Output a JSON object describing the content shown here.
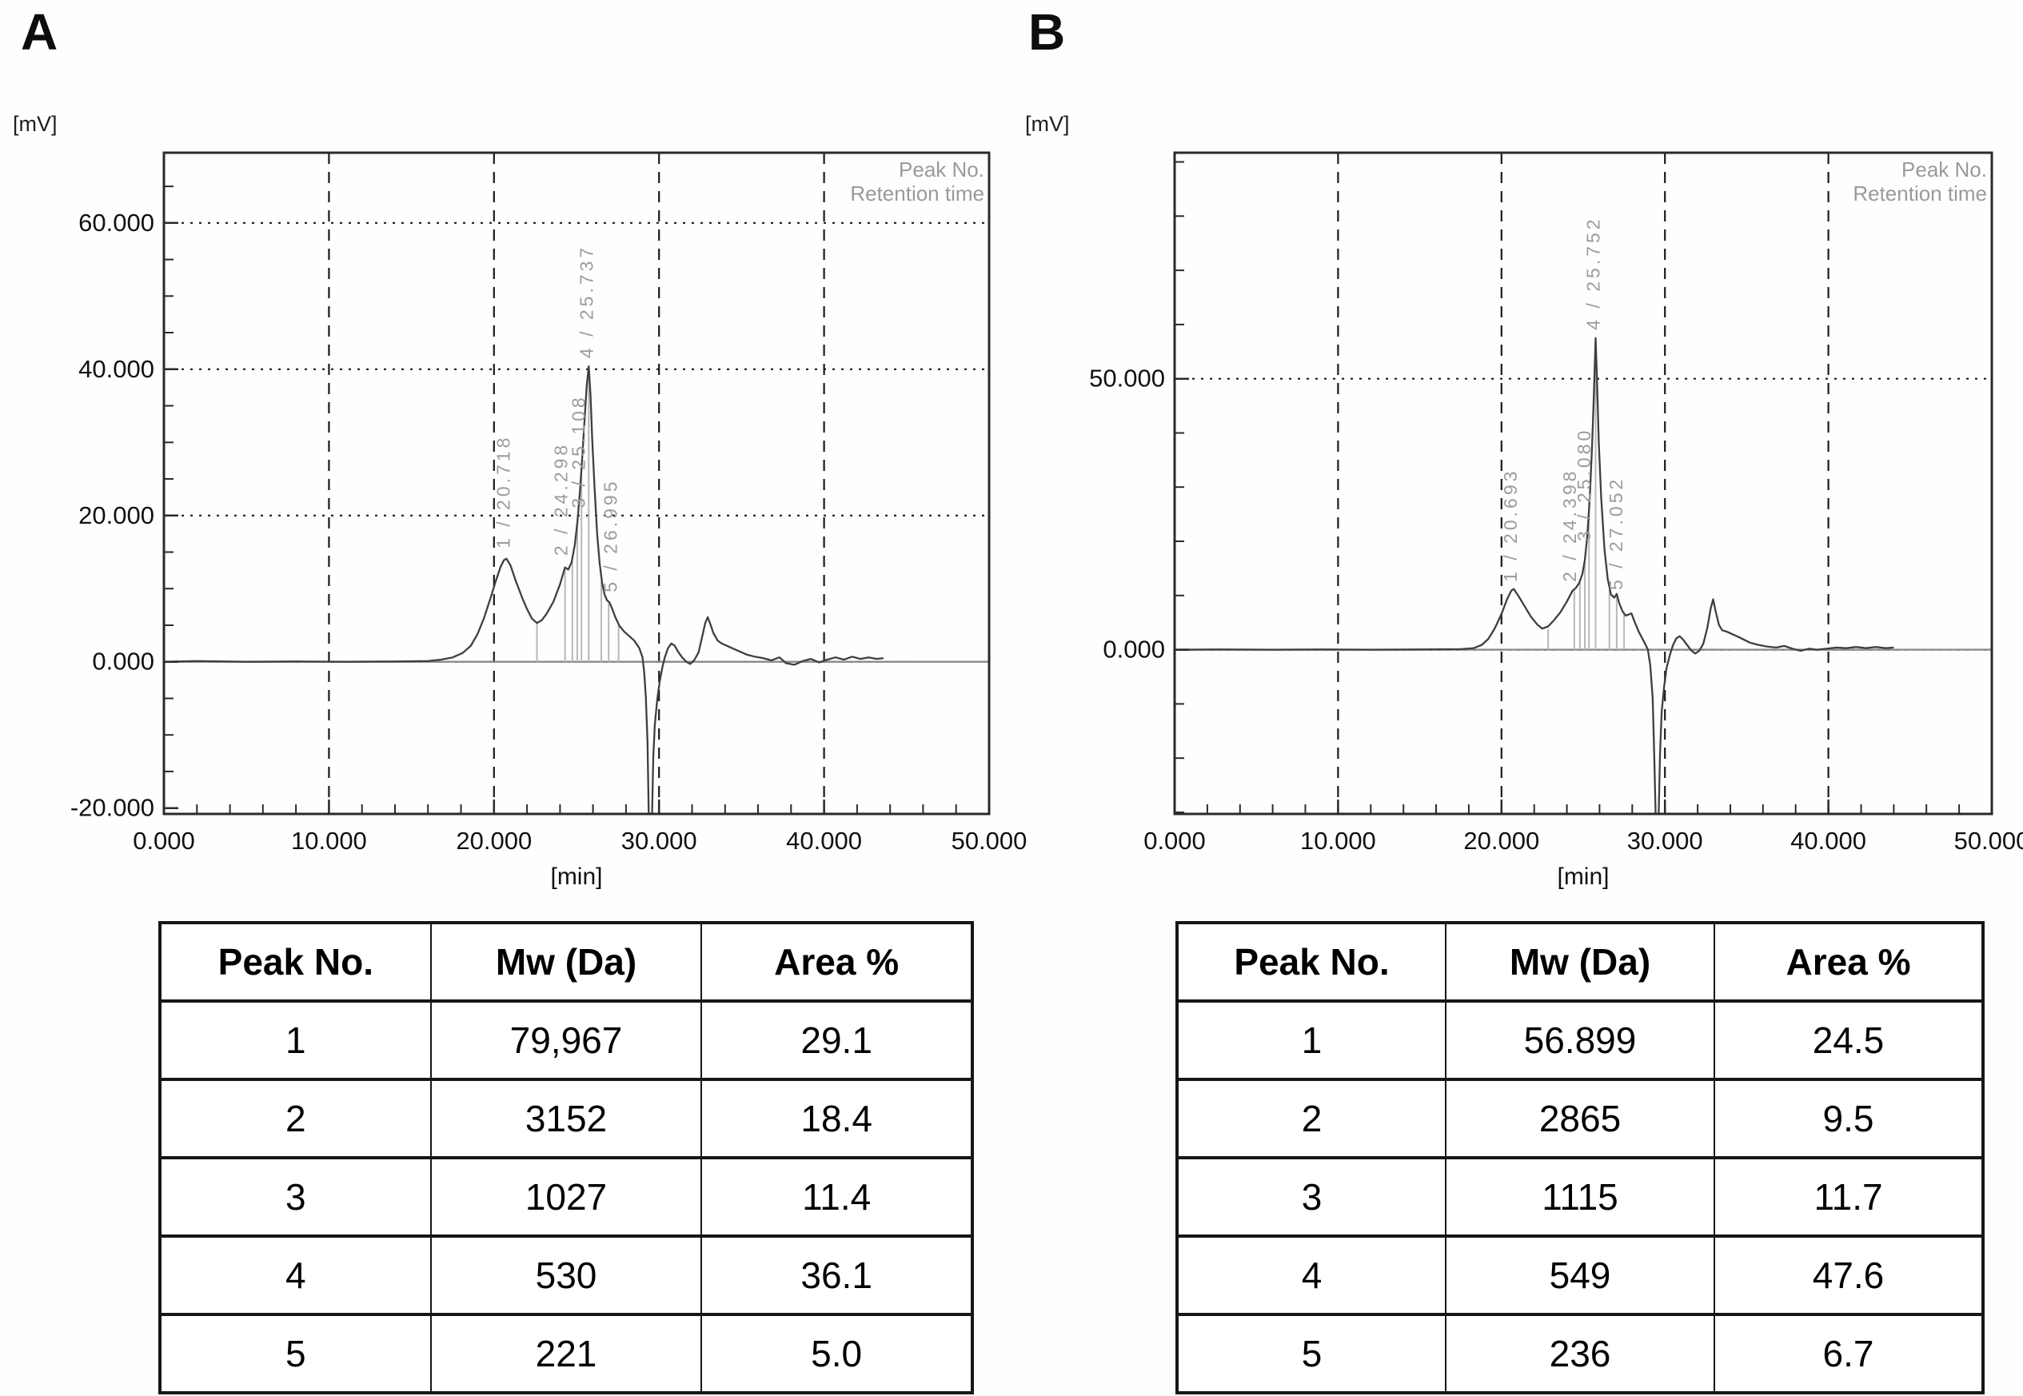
{
  "colors": {
    "curve": "#3f3f3f",
    "grid": "#1a1a1a",
    "axis": "#2a2a2a",
    "baseline": "#8a8a8a",
    "marker": "#b8b8b8",
    "annotation": "#9c9c9c",
    "legend": "#9a9a9a",
    "text": "#111111",
    "table_border": "#161616"
  },
  "chart_data": [
    {
      "type": "line",
      "id": "A",
      "panel_label": "A",
      "y_axis_unit": "[mV]",
      "x_axis_unit": "[min]",
      "legend": [
        "Peak No.",
        "Retention time"
      ],
      "x_range": [
        0,
        50
      ],
      "y_range": [
        -20.8,
        69.6
      ],
      "x_minor_step": 2,
      "y_minor_step": 5,
      "v_gridlines": [
        10,
        20,
        30,
        40
      ],
      "h_gridlines": [
        60,
        40,
        20,
        0
      ],
      "x_ticks": [
        {
          "v": 0,
          "label": "0.000"
        },
        {
          "v": 10,
          "label": "10.000"
        },
        {
          "v": 20,
          "label": "20.000"
        },
        {
          "v": 30,
          "label": "30.000"
        },
        {
          "v": 40,
          "label": "40.000"
        },
        {
          "v": 50,
          "label": "50.000"
        }
      ],
      "y_ticks": [
        {
          "v": 60,
          "label": "60.000"
        },
        {
          "v": 40,
          "label": "40.000"
        },
        {
          "v": 20,
          "label": "20.000"
        },
        {
          "v": 0,
          "label": "0.000"
        },
        {
          "v": -20,
          "label": "-20.000"
        }
      ],
      "annotations": [
        {
          "text": "1 / 20.718",
          "x": 20.95,
          "y_mv": 15.5
        },
        {
          "text": "2 / 24.298",
          "x": 24.45,
          "y_mv": 14.5
        },
        {
          "text": "3 / 25.108",
          "x": 25.5,
          "y_mv": 21
        },
        {
          "text": "4 / 25.737",
          "x": 26.0,
          "y_mv": 41.5
        },
        {
          "text": "5 / 26.995",
          "x": 27.45,
          "y_mv": 9.5
        }
      ],
      "markers": [
        {
          "x": 22.6,
          "h": 5.2
        },
        {
          "x": 24.3,
          "h": 12.8
        },
        {
          "x": 24.75,
          "h": 13.8
        },
        {
          "x": 25.05,
          "h": 19
        },
        {
          "x": 25.3,
          "h": 26
        },
        {
          "x": 25.74,
          "h": 40
        },
        {
          "x": 26.5,
          "h": 11
        },
        {
          "x": 26.95,
          "h": 8
        },
        {
          "x": 27.55,
          "h": 5
        }
      ],
      "curve": [
        [
          0,
          0
        ],
        [
          2,
          0.1
        ],
        [
          5,
          0
        ],
        [
          8,
          0.05
        ],
        [
          11,
          0
        ],
        [
          14,
          0.05
        ],
        [
          16,
          0.1
        ],
        [
          16.8,
          0.3
        ],
        [
          17.5,
          0.6
        ],
        [
          18.1,
          1.2
        ],
        [
          18.6,
          2.2
        ],
        [
          19.0,
          3.8
        ],
        [
          19.4,
          6
        ],
        [
          19.8,
          8.8
        ],
        [
          20.1,
          11
        ],
        [
          20.4,
          13
        ],
        [
          20.6,
          13.9
        ],
        [
          20.75,
          14.1
        ],
        [
          21.0,
          13.2
        ],
        [
          21.3,
          11.2
        ],
        [
          21.7,
          8.8
        ],
        [
          22.0,
          7.2
        ],
        [
          22.3,
          5.9
        ],
        [
          22.6,
          5.3
        ],
        [
          22.9,
          5.7
        ],
        [
          23.2,
          6.6
        ],
        [
          23.6,
          8.2
        ],
        [
          24.0,
          10.6
        ],
        [
          24.3,
          12.9
        ],
        [
          24.5,
          12.6
        ],
        [
          24.7,
          13.6
        ],
        [
          24.9,
          16
        ],
        [
          25.05,
          19
        ],
        [
          25.2,
          23
        ],
        [
          25.35,
          28
        ],
        [
          25.5,
          33.5
        ],
        [
          25.62,
          37.8
        ],
        [
          25.74,
          40.4
        ],
        [
          25.85,
          36.5
        ],
        [
          25.95,
          30.5
        ],
        [
          26.1,
          23.5
        ],
        [
          26.25,
          17.5
        ],
        [
          26.4,
          13.5
        ],
        [
          26.55,
          10.8
        ],
        [
          26.7,
          9.2
        ],
        [
          26.85,
          8.4
        ],
        [
          27.0,
          8.1
        ],
        [
          27.15,
          7.3
        ],
        [
          27.35,
          6.1
        ],
        [
          27.6,
          4.9
        ],
        [
          27.9,
          4.1
        ],
        [
          28.2,
          3.5
        ],
        [
          28.5,
          2.9
        ],
        [
          28.8,
          1.9
        ],
        [
          29.0,
          0.6
        ],
        [
          29.1,
          -1.4
        ],
        [
          29.2,
          -4.8
        ],
        [
          29.3,
          -11
        ],
        [
          29.4,
          -24
        ],
        [
          29.55,
          -24
        ],
        [
          29.65,
          -13
        ],
        [
          29.75,
          -8.5
        ],
        [
          29.9,
          -5
        ],
        [
          30.05,
          -2.6
        ],
        [
          30.2,
          -0.8
        ],
        [
          30.35,
          0.6
        ],
        [
          30.55,
          1.9
        ],
        [
          30.75,
          2.5
        ],
        [
          30.95,
          2.2
        ],
        [
          31.15,
          1.4
        ],
        [
          31.4,
          0.6
        ],
        [
          31.65,
          0
        ],
        [
          31.9,
          -0.3
        ],
        [
          32.15,
          0.3
        ],
        [
          32.4,
          1.3
        ],
        [
          32.6,
          3.3
        ],
        [
          32.8,
          5.3
        ],
        [
          32.95,
          6.1
        ],
        [
          33.1,
          5.2
        ],
        [
          33.3,
          3.9
        ],
        [
          33.55,
          2.9
        ],
        [
          33.8,
          2.5
        ],
        [
          34.1,
          2.2
        ],
        [
          34.5,
          1.8
        ],
        [
          34.9,
          1.4
        ],
        [
          35.3,
          1
        ],
        [
          35.8,
          0.7
        ],
        [
          36.3,
          0.5
        ],
        [
          36.8,
          0.2
        ],
        [
          37.3,
          0.6
        ],
        [
          37.7,
          -0.2
        ],
        [
          38.2,
          -0.4
        ],
        [
          38.7,
          0.1
        ],
        [
          39.2,
          0.4
        ],
        [
          39.7,
          -0.1
        ],
        [
          40.2,
          0.3
        ],
        [
          40.7,
          0.6
        ],
        [
          41.2,
          0.3
        ],
        [
          41.7,
          0.7
        ],
        [
          42.2,
          0.4
        ],
        [
          42.7,
          0.6
        ],
        [
          43.2,
          0.4
        ],
        [
          43.6,
          0.5
        ]
      ],
      "table": {
        "headers": [
          "Peak No.",
          "Mw (Da)",
          "Area %"
        ],
        "rows": [
          [
            "1",
            "79,967",
            "29.1"
          ],
          [
            "2",
            "3152",
            "18.4"
          ],
          [
            "3",
            "1027",
            "11.4"
          ],
          [
            "4",
            "530",
            "36.1"
          ],
          [
            "5",
            "221",
            "5.0"
          ]
        ]
      }
    },
    {
      "type": "line",
      "id": "B",
      "panel_label": "B",
      "y_axis_unit": "[mV]",
      "x_axis_unit": "[min]",
      "legend": [
        "Peak No.",
        "Retention time"
      ],
      "x_range": [
        0,
        50
      ],
      "y_range": [
        -30.3,
        91.7
      ],
      "x_minor_step": 2,
      "y_minor_step": 10,
      "v_gridlines": [
        10,
        20,
        30,
        40
      ],
      "h_gridlines": [
        50,
        0
      ],
      "x_ticks": [
        {
          "v": 0,
          "label": "0.000"
        },
        {
          "v": 10,
          "label": "10.000"
        },
        {
          "v": 20,
          "label": "20.000"
        },
        {
          "v": 30,
          "label": "30.000"
        },
        {
          "v": 40,
          "label": "40.000"
        },
        {
          "v": 50,
          "label": "50.000"
        }
      ],
      "y_ticks": [
        {
          "v": 50,
          "label": "50.000"
        },
        {
          "v": 0,
          "label": "0.000"
        }
      ],
      "annotations": [
        {
          "text": "1 / 20.693",
          "x": 20.95,
          "y_mv": 12.5
        },
        {
          "text": "2 / 24.398",
          "x": 24.55,
          "y_mv": 12.5
        },
        {
          "text": "3 / 25.080",
          "x": 25.45,
          "y_mv": 20
        },
        {
          "text": "4 / 25.752",
          "x": 26.0,
          "y_mv": 59
        },
        {
          "text": "5 / 27.052",
          "x": 27.4,
          "y_mv": 11
        }
      ],
      "markers": [
        {
          "x": 22.85,
          "h": 3.8
        },
        {
          "x": 24.45,
          "h": 11
        },
        {
          "x": 24.8,
          "h": 12.5
        },
        {
          "x": 25.1,
          "h": 16
        },
        {
          "x": 25.35,
          "h": 28
        },
        {
          "x": 25.76,
          "h": 57
        },
        {
          "x": 26.6,
          "h": 11
        },
        {
          "x": 27.05,
          "h": 10
        },
        {
          "x": 27.5,
          "h": 6.5
        }
      ],
      "curve": [
        [
          0,
          0
        ],
        [
          3,
          0.05
        ],
        [
          6,
          0
        ],
        [
          9,
          0.05
        ],
        [
          12,
          0
        ],
        [
          15,
          0.05
        ],
        [
          17.5,
          0.1
        ],
        [
          18.3,
          0.3
        ],
        [
          18.8,
          0.9
        ],
        [
          19.2,
          2
        ],
        [
          19.6,
          4
        ],
        [
          20.0,
          6.6
        ],
        [
          20.35,
          9.4
        ],
        [
          20.6,
          10.9
        ],
        [
          20.75,
          11.2
        ],
        [
          21.0,
          10.1
        ],
        [
          21.4,
          8.1
        ],
        [
          21.8,
          6.1
        ],
        [
          22.2,
          4.6
        ],
        [
          22.5,
          3.9
        ],
        [
          22.85,
          4.3
        ],
        [
          23.2,
          5.4
        ],
        [
          23.6,
          6.9
        ],
        [
          24.0,
          8.9
        ],
        [
          24.35,
          10.9
        ],
        [
          24.55,
          11.4
        ],
        [
          24.75,
          12.3
        ],
        [
          24.95,
          14
        ],
        [
          25.1,
          16.5
        ],
        [
          25.25,
          21
        ],
        [
          25.4,
          28
        ],
        [
          25.55,
          38
        ],
        [
          25.65,
          47
        ],
        [
          25.76,
          57.5
        ],
        [
          25.85,
          49
        ],
        [
          25.95,
          38.5
        ],
        [
          26.1,
          28
        ],
        [
          26.3,
          18.5
        ],
        [
          26.5,
          13
        ],
        [
          26.7,
          10.2
        ],
        [
          26.9,
          9.6
        ],
        [
          27.05,
          10.3
        ],
        [
          27.2,
          8.6
        ],
        [
          27.4,
          7.1
        ],
        [
          27.6,
          6.3
        ],
        [
          27.8,
          6.5
        ],
        [
          27.95,
          6.7
        ],
        [
          28.15,
          5.1
        ],
        [
          28.4,
          3.3
        ],
        [
          28.7,
          1.6
        ],
        [
          28.95,
          0.1
        ],
        [
          29.1,
          -2.8
        ],
        [
          29.25,
          -9
        ],
        [
          29.35,
          -20
        ],
        [
          29.45,
          -33
        ],
        [
          29.6,
          -33
        ],
        [
          29.7,
          -19
        ],
        [
          29.8,
          -11.5
        ],
        [
          29.95,
          -6.8
        ],
        [
          30.1,
          -3.4
        ],
        [
          30.3,
          -1
        ],
        [
          30.5,
          0.9
        ],
        [
          30.7,
          2.1
        ],
        [
          30.9,
          2.5
        ],
        [
          31.1,
          1.9
        ],
        [
          31.35,
          0.9
        ],
        [
          31.6,
          -0.1
        ],
        [
          31.85,
          -0.7
        ],
        [
          32.1,
          -0.2
        ],
        [
          32.35,
          1.1
        ],
        [
          32.6,
          4.1
        ],
        [
          32.8,
          7.6
        ],
        [
          32.95,
          9.3
        ],
        [
          33.1,
          7.1
        ],
        [
          33.3,
          4.6
        ],
        [
          33.5,
          3.6
        ],
        [
          33.8,
          3.3
        ],
        [
          34.1,
          2.9
        ],
        [
          34.4,
          2.5
        ],
        [
          34.8,
          1.9
        ],
        [
          35.2,
          1.3
        ],
        [
          35.7,
          0.9
        ],
        [
          36.2,
          0.6
        ],
        [
          36.8,
          0.4
        ],
        [
          37.3,
          0.7
        ],
        [
          37.8,
          0.2
        ],
        [
          38.3,
          -0.2
        ],
        [
          38.8,
          0.2
        ],
        [
          39.3,
          0
        ],
        [
          39.9,
          0.2
        ],
        [
          40.5,
          0.4
        ],
        [
          41.1,
          0.3
        ],
        [
          41.7,
          0.5
        ],
        [
          42.3,
          0.3
        ],
        [
          42.9,
          0.5
        ],
        [
          43.5,
          0.3
        ],
        [
          44,
          0.4
        ]
      ],
      "table": {
        "headers": [
          "Peak No.",
          "Mw (Da)",
          "Area %"
        ],
        "rows": [
          [
            "1",
            "56.899",
            "24.5"
          ],
          [
            "2",
            "2865",
            "9.5"
          ],
          [
            "3",
            "1115",
            "11.7"
          ],
          [
            "4",
            "549",
            "47.6"
          ],
          [
            "5",
            "236",
            "6.7"
          ]
        ]
      }
    }
  ]
}
